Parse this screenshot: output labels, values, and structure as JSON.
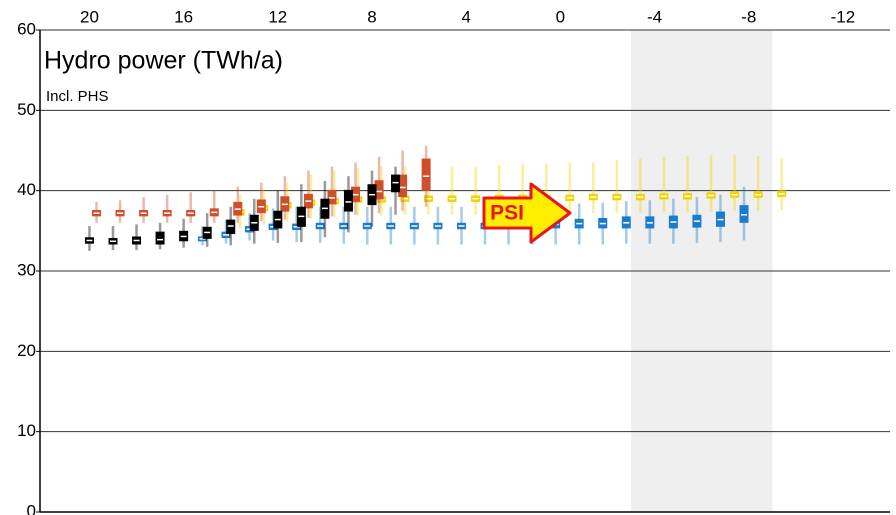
{
  "chart_data": {
    "type": "box",
    "title": "Hydro power (TWh/a)",
    "subtitle": "Incl. PHS",
    "annotation": "PSI",
    "xlim": [
      22.1,
      -14
    ],
    "xticks": [
      20,
      16,
      12,
      8,
      4,
      0,
      -4,
      -8,
      -12
    ],
    "ylim": [
      0,
      60
    ],
    "yticks": [
      0,
      10,
      20,
      30,
      40,
      50,
      60
    ],
    "grid": true,
    "highlight_x": [
      -3,
      -9
    ],
    "series": [
      {
        "color": "#f2d400",
        "x": [
          13.6,
          12.6,
          11.6,
          10.6,
          9.6,
          8.6,
          7.6,
          6.6,
          5.6,
          4.6,
          3.6,
          2.6,
          1.6,
          0.6,
          -0.4,
          -1.4,
          -2.4,
          -3.4,
          -4.4,
          -5.4,
          -6.4,
          -7.4,
          -8.4,
          -9.4
        ],
        "median": [
          37.3,
          37.8,
          38.2,
          38.5,
          38.7,
          38.9,
          38.9,
          39.0,
          39.0,
          39.0,
          39.0,
          39.1,
          39.1,
          39.1,
          39.1,
          39.2,
          39.2,
          39.2,
          39.3,
          39.3,
          39.4,
          39.5,
          39.5,
          39.6
        ],
        "q1": [
          36.9,
          37.4,
          37.8,
          38.1,
          38.3,
          38.5,
          38.5,
          38.6,
          38.6,
          38.6,
          38.6,
          38.7,
          38.7,
          38.7,
          38.7,
          38.8,
          38.8,
          38.8,
          38.9,
          38.9,
          39.0,
          39.1,
          39.1,
          39.2
        ],
        "q3": [
          37.7,
          38.2,
          38.6,
          38.9,
          39.1,
          39.3,
          39.3,
          39.4,
          39.4,
          39.4,
          39.4,
          39.5,
          39.5,
          39.5,
          39.5,
          39.6,
          39.6,
          39.6,
          39.7,
          39.7,
          39.8,
          39.9,
          39.9,
          40.0
        ],
        "low": [
          35.3,
          35.8,
          36.2,
          36.5,
          36.7,
          36.9,
          36.9,
          37.0,
          37.0,
          37.0,
          37.0,
          37.1,
          37.1,
          37.1,
          37.1,
          37.2,
          37.2,
          37.2,
          37.3,
          37.3,
          37.4,
          37.5,
          37.5,
          37.6
        ],
        "high": [
          39.5,
          40.2,
          41.0,
          42.0,
          42.5,
          42.8,
          43.0,
          43.0,
          43.0,
          43.0,
          43.0,
          43.2,
          43.3,
          43.4,
          43.5,
          43.5,
          43.8,
          44.0,
          44.2,
          44.3,
          44.4,
          44.4,
          44.3,
          44.0
        ]
      },
      {
        "color": "#1a7ccf",
        "x": [
          15.2,
          14.2,
          13.2,
          12.2,
          11.2,
          10.2,
          9.2,
          8.2,
          7.2,
          6.2,
          5.2,
          4.2,
          3.2,
          2.2,
          1.2,
          0.2,
          -0.8,
          -1.8,
          -2.8,
          -3.8,
          -4.8,
          -5.8,
          -6.8,
          -7.8
        ],
        "median": [
          34.0,
          34.5,
          35.2,
          35.5,
          35.5,
          35.6,
          35.6,
          35.6,
          35.6,
          35.6,
          35.6,
          35.6,
          35.6,
          35.7,
          35.8,
          35.8,
          35.9,
          35.9,
          36.0,
          36.0,
          36.1,
          36.2,
          36.4,
          37.0
        ],
        "q1": [
          33.7,
          34.1,
          34.8,
          35.1,
          35.1,
          35.2,
          35.2,
          35.2,
          35.2,
          35.2,
          35.2,
          35.2,
          35.2,
          35.2,
          35.3,
          35.3,
          35.3,
          35.3,
          35.3,
          35.3,
          35.3,
          35.4,
          35.5,
          36.0
        ],
        "q3": [
          34.3,
          34.9,
          35.6,
          35.9,
          35.9,
          36.0,
          36.0,
          36.0,
          36.0,
          36.0,
          36.0,
          36.0,
          36.0,
          36.2,
          36.4,
          36.4,
          36.5,
          36.6,
          36.8,
          36.8,
          36.9,
          37.0,
          37.4,
          38.2
        ],
        "low": [
          33.2,
          33.4,
          33.8,
          33.8,
          33.6,
          33.5,
          33.4,
          33.3,
          33.3,
          33.3,
          33.3,
          33.3,
          33.3,
          33.3,
          33.3,
          33.3,
          33.3,
          33.3,
          33.4,
          33.4,
          33.4,
          33.5,
          33.6,
          33.8
        ],
        "high": [
          35.6,
          36.4,
          37.2,
          37.8,
          38.0,
          38.0,
          38.0,
          38.0,
          38.0,
          38.0,
          38.0,
          38.0,
          38.0,
          38.0,
          38.2,
          38.3,
          38.4,
          38.5,
          38.7,
          38.8,
          39.0,
          39.2,
          39.5,
          40.5
        ]
      },
      {
        "color": "#cf4e2c",
        "x": [
          19.7,
          18.7,
          17.7,
          16.7,
          15.7,
          14.7,
          13.7,
          12.7,
          11.7,
          10.7,
          9.7,
          8.7,
          7.7,
          6.7,
          5.7
        ],
        "median": [
          37.2,
          37.2,
          37.2,
          37.2,
          37.2,
          37.3,
          37.7,
          38.0,
          38.3,
          38.7,
          39.1,
          39.5,
          39.9,
          40.4,
          41.8
        ],
        "q1": [
          36.8,
          36.8,
          36.8,
          36.8,
          36.8,
          36.8,
          36.9,
          37.2,
          37.4,
          37.8,
          38.3,
          38.6,
          38.9,
          39.2,
          40.0
        ],
        "q3": [
          37.6,
          37.6,
          37.6,
          37.6,
          37.6,
          37.8,
          38.6,
          38.9,
          39.3,
          39.6,
          40.1,
          40.5,
          41.3,
          42.0,
          44.0
        ],
        "low": [
          36.0,
          36.0,
          36.0,
          36.0,
          36.0,
          36.0,
          36.0,
          36.2,
          36.4,
          36.6,
          36.8,
          37.0,
          37.2,
          37.5,
          38.0
        ],
        "high": [
          38.6,
          38.8,
          39.2,
          39.5,
          39.8,
          40.0,
          40.5,
          41.0,
          41.8,
          42.5,
          43.0,
          43.5,
          44.2,
          45.0,
          45.6
        ]
      },
      {
        "color": "#000000",
        "x": [
          20,
          19,
          18,
          17,
          16,
          15,
          14,
          13,
          12,
          11,
          10,
          9,
          8,
          7
        ],
        "median": [
          33.8,
          33.7,
          33.8,
          33.9,
          34.3,
          34.8,
          35.6,
          36.0,
          36.4,
          36.8,
          37.8,
          38.6,
          39.5,
          41.0
        ],
        "q1": [
          33.4,
          33.3,
          33.3,
          33.3,
          33.7,
          34.0,
          34.6,
          35.0,
          35.3,
          35.5,
          36.5,
          37.4,
          38.2,
          39.8
        ],
        "q3": [
          34.2,
          34.1,
          34.3,
          34.9,
          35.0,
          35.5,
          36.4,
          37.0,
          37.5,
          38.0,
          39.0,
          40.1,
          40.8,
          42.0
        ],
        "low": [
          32.5,
          32.6,
          32.6,
          32.7,
          32.9,
          33.0,
          33.2,
          33.4,
          33.5,
          33.6,
          34.2,
          34.8,
          35.5,
          37.0
        ],
        "high": [
          35.6,
          35.6,
          35.8,
          36.0,
          36.5,
          37.2,
          38.0,
          39.0,
          40.0,
          40.8,
          41.2,
          41.8,
          42.5,
          43.0
        ]
      }
    ]
  }
}
